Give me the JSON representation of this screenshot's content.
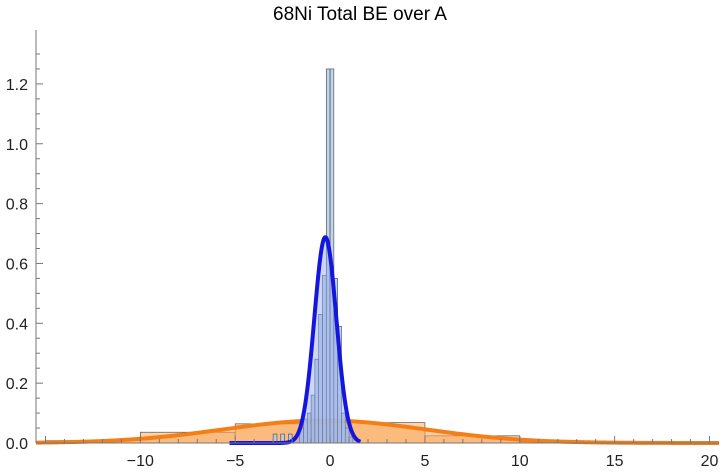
{
  "chart_data": {
    "type": "bar",
    "title": "68Ni Total BE over A",
    "xlabel": "",
    "ylabel": "",
    "xlim": [
      -15.5,
      20.5
    ],
    "ylim": [
      0,
      1.32
    ],
    "grid": false,
    "x_ticks": [
      -10,
      -5,
      0,
      5,
      10,
      15,
      20
    ],
    "x_tick_labels": [
      "−10",
      "−5",
      "0",
      "5",
      "10",
      "15",
      "20"
    ],
    "y_ticks": [
      0.0,
      0.2,
      0.4,
      0.6,
      0.8,
      1.0,
      1.2
    ],
    "y_tick_labels": [
      "0.0",
      "0.2",
      "0.4",
      "0.6",
      "0.8",
      "1.0",
      "1.2"
    ],
    "series": [
      {
        "kind": "histogram",
        "color": "#fcc690",
        "bins": [
          {
            "x0": -15,
            "x1": -10,
            "y": 0.008
          },
          {
            "x0": -10,
            "x1": -5,
            "y": 0.036
          },
          {
            "x0": -5,
            "x1": 0,
            "y": 0.064
          },
          {
            "x0": 0,
            "x1": 5,
            "y": 0.068
          },
          {
            "x0": 5,
            "x1": 10,
            "y": 0.024
          },
          {
            "x0": 10,
            "x1": 15,
            "y": 0.004
          }
        ]
      },
      {
        "kind": "density",
        "color": "#f57f17",
        "fill": "#fca65a",
        "mean": -0.3,
        "sd": 5.3
      },
      {
        "kind": "histogram",
        "color": "#b5cde8",
        "bins": [
          {
            "x0": -3.0,
            "x1": -2.8,
            "y": 0.03
          },
          {
            "x0": -2.6,
            "x1": -2.4,
            "y": 0.03
          },
          {
            "x0": -2.2,
            "x1": -2.0,
            "y": 0.03
          },
          {
            "x0": -1.6,
            "x1": -1.4,
            "y": 0.05
          },
          {
            "x0": -1.4,
            "x1": -1.2,
            "y": 0.08
          },
          {
            "x0": -1.2,
            "x1": -1.0,
            "y": 0.1
          },
          {
            "x0": -1.0,
            "x1": -0.8,
            "y": 0.16
          },
          {
            "x0": -0.8,
            "x1": -0.6,
            "y": 0.28
          },
          {
            "x0": -0.6,
            "x1": -0.4,
            "y": 0.43
          },
          {
            "x0": -0.4,
            "x1": -0.2,
            "y": 0.56
          },
          {
            "x0": -0.2,
            "x1": 0.0,
            "y": 1.25
          },
          {
            "x0": 0.0,
            "x1": 0.2,
            "y": 1.25
          },
          {
            "x0": 0.2,
            "x1": 0.4,
            "y": 0.55
          },
          {
            "x0": 0.4,
            "x1": 0.6,
            "y": 0.39
          },
          {
            "x0": 0.6,
            "x1": 0.8,
            "y": 0.1
          },
          {
            "x0": 0.8,
            "x1": 1.0,
            "y": 0.05
          },
          {
            "x0": 1.0,
            "x1": 1.2,
            "y": 0.02
          }
        ]
      },
      {
        "kind": "density",
        "color": "#1515e0",
        "fill": "#8fa6ef",
        "mean": -0.25,
        "sd": 0.58
      }
    ]
  }
}
